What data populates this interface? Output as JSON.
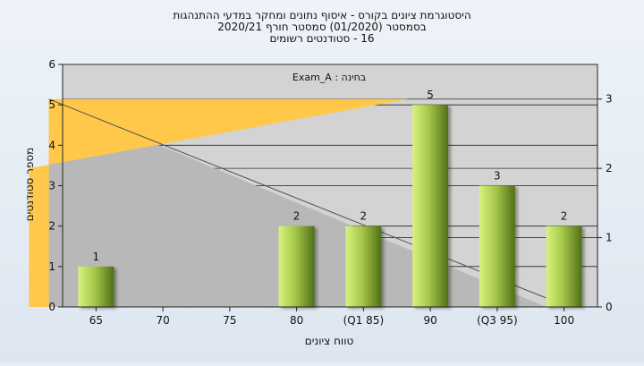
{
  "chart_data": {
    "type": "bar",
    "title_lines": [
      "היסטוגרמת ציונים בקורס - איסוף נתונים ומחקר במדעי ההתנהגות",
      "בסמסטר  (01/2020)  סמסטר חורף 2020/21",
      "16 - סטודנטים רשומים"
    ],
    "subtitle": "בחינה : Exam_A",
    "xlabel": "טווח ציונים",
    "ylabel": "מספר סטודנטים",
    "categories": [
      "65",
      "70",
      "75",
      "80",
      "(Q1 85)",
      "90",
      "(Q3 95)",
      "100"
    ],
    "values": [
      1,
      0,
      0,
      2,
      2,
      5,
      3,
      2
    ],
    "data_labels": [
      "1",
      "",
      "",
      "2",
      "2",
      "5",
      "3",
      "2"
    ],
    "ylim": [
      0,
      6
    ],
    "yticks": [
      "0",
      "1",
      "2",
      "3",
      "4",
      "5",
      "6"
    ],
    "y2lim": [
      0,
      3.5
    ],
    "y2ticks": [
      "0",
      "1",
      "2",
      "3"
    ],
    "boxplot": {
      "min": 80,
      "q1": 85,
      "median": 90,
      "q3": 95,
      "max": 100
    },
    "grid": true,
    "colors": {
      "background": "#e8eef6",
      "plot_background": "#d3d3d3",
      "bar_light": "#d4f07a",
      "bar_dark": "#5a7a1a",
      "box_fill": "#ffc84a",
      "whisker_fill": "#b8b8b8"
    }
  }
}
